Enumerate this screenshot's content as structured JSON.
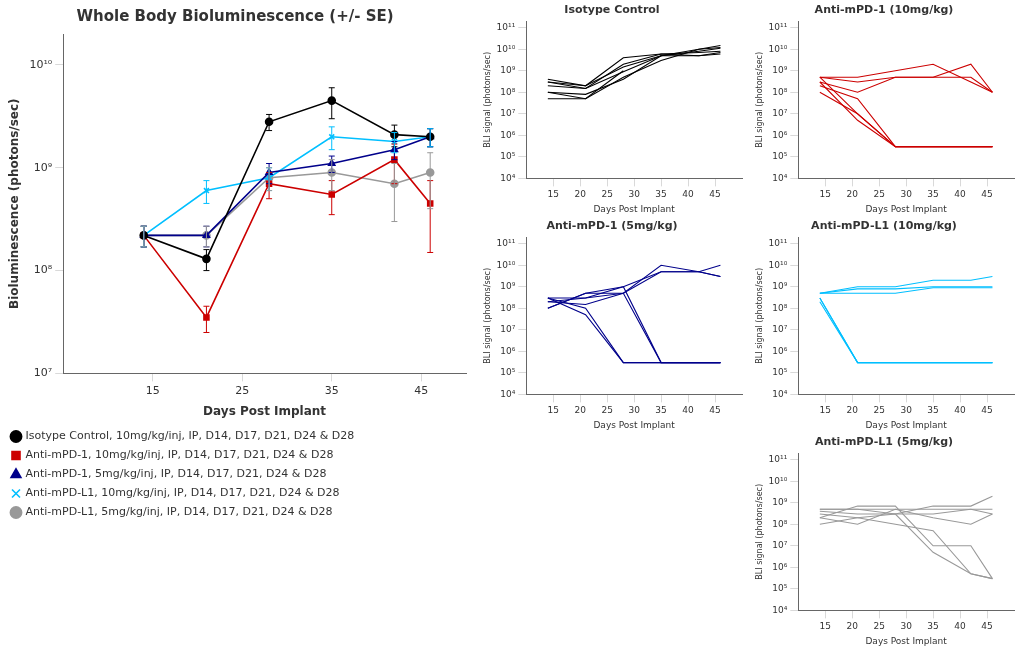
{
  "chart_data": [
    {
      "type": "line",
      "title": "Whole Body Bioluminescence (+/- SE)",
      "x_label": "Days Post Implant",
      "y_label": "Bioluminescence (photons/sec)",
      "x": [
        14,
        21,
        28,
        35,
        42,
        46
      ],
      "xlim": [
        5,
        50
      ],
      "xticks": [
        15,
        25,
        35,
        45
      ],
      "ylim": [
        10000000.0,
        20000000000.0
      ],
      "yticks": [
        {
          "value": 10000000.0,
          "label": "10⁷"
        },
        {
          "value": 100000000.0,
          "label": "10⁸"
        },
        {
          "value": 1000000000.0,
          "label": "10⁹"
        },
        {
          "value": 10000000000.0,
          "label": "10¹⁰"
        }
      ],
      "log": "y",
      "grid": false,
      "legend": "bottom",
      "series": [
        {
          "name": "Isotype Control, 10mg/kg/inj, IP, D14, D17, D21, D24 & D28",
          "color": "#000000",
          "marker": "circle",
          "values": [
            220000000.0,
            130000000.0,
            2800000000.0,
            4500000000.0,
            2100000000.0,
            2000000000.0
          ],
          "errors": [
            50000000.0,
            30000000.0,
            500000000.0,
            1500000000.0,
            500000000.0,
            400000000.0
          ]
        },
        {
          "name": "Anti-mPD-1, 10mg/kg/inj, IP, D14, D17, D21, D24 & D28",
          "color": "#cc0000",
          "marker": "square",
          "values": [
            220000000.0,
            35000000.0,
            700000000.0,
            550000000.0,
            1200000000.0,
            450000000.0
          ],
          "errors": [
            50000000.0,
            10000000.0,
            200000000.0,
            200000000.0,
            500000000.0,
            300000000.0
          ]
        },
        {
          "name": "Anti-mPD-1, 5mg/kg/inj, IP, D14, D17, D21, D24 & D28",
          "color": "#00008B",
          "marker": "triangle",
          "values": [
            220000000.0,
            220000000.0,
            900000000.0,
            1100000000.0,
            1500000000.0,
            2000000000.0
          ],
          "errors": [
            50000000.0,
            50000000.0,
            200000000.0,
            200000000.0,
            300000000.0,
            400000000.0
          ]
        },
        {
          "name": "Anti-mPD-L1, 10mg/kg/inj, IP, D14, D17, D21, D24 & D28",
          "color": "#00BFFF",
          "marker": "x",
          "values": [
            220000000.0,
            600000000.0,
            800000000.0,
            2000000000.0,
            1800000000.0,
            2000000000.0
          ],
          "errors": [
            50000000.0,
            150000000.0,
            200000000.0,
            500000000.0,
            400000000.0,
            400000000.0
          ]
        },
        {
          "name": "Anti-mPD-L1, 5mg/kg/inj, IP, D14, D17, D21, D24 & D28",
          "color": "#999999",
          "marker": "circle",
          "values": [
            220000000.0,
            220000000.0,
            800000000.0,
            900000000.0,
            700000000.0,
            900000000.0
          ],
          "errors": [
            50000000.0,
            50000000.0,
            200000000.0,
            300000000.0,
            400000000.0,
            500000000.0
          ]
        }
      ]
    },
    {
      "type": "line",
      "title": "Isotype Control",
      "x_label": "Days Post Implant",
      "y_label": "BLI signal (photons/sec)",
      "x": [
        14,
        21,
        28,
        35,
        42,
        46
      ],
      "xlim": [
        10,
        50
      ],
      "xticks": [
        15,
        20,
        25,
        30,
        35,
        40,
        45
      ],
      "ylim": [
        10000.0,
        200000000000.0
      ],
      "yticks": [
        {
          "value": 10000.0,
          "label": "10⁴"
        },
        {
          "value": 100000.0,
          "label": "10⁵"
        },
        {
          "value": 1000000.0,
          "label": "10⁶"
        },
        {
          "value": 10000000.0,
          "label": "10⁷"
        },
        {
          "value": 100000000.0,
          "label": "10⁸"
        },
        {
          "value": 1000000000.0,
          "label": "10⁹"
        },
        {
          "value": 10000000000.0,
          "label": "10¹⁰"
        },
        {
          "value": 100000000000.0,
          "label": "10¹¹"
        }
      ],
      "log": "y",
      "grid": false,
      "series": [
        {
          "color": "#000000",
          "values": [
            50000000.0,
            50000000.0,
            500000000.0,
            3000000000.0,
            10000000000.0,
            12000000000.0
          ]
        },
        {
          "color": "#000000",
          "values": [
            100000000.0,
            80000000.0,
            400000000.0,
            5000000000.0,
            5000000000.0,
            7000000000.0
          ]
        },
        {
          "color": "#000000",
          "values": [
            200000000.0,
            150000000.0,
            900000000.0,
            5000000000.0,
            8000000000.0,
            11000000000.0
          ]
        },
        {
          "color": "#000000",
          "values": [
            300000000.0,
            200000000.0,
            1500000000.0,
            5000000000.0,
            10000000000.0,
            15000000000.0
          ]
        },
        {
          "color": "#000000",
          "values": [
            300000000.0,
            150000000.0,
            2000000000.0,
            6000000000.0,
            7000000000.0,
            8000000000.0
          ]
        },
        {
          "color": "#000000",
          "values": [
            400000000.0,
            200000000.0,
            4000000000.0,
            6000000000.0,
            5000000000.0,
            6000000000.0
          ]
        },
        {
          "color": "#000000",
          "values": [
            100000000.0,
            50000000.0,
            1000000000.0,
            null,
            null,
            null
          ]
        }
      ]
    },
    {
      "type": "line",
      "title": "Anti-mPD-1 (10mg/kg)",
      "x_label": "Days Post Implant",
      "y_label": "BLI signal (photons/sec)",
      "x": [
        14,
        21,
        28,
        35,
        42,
        46
      ],
      "xlim": [
        10,
        50
      ],
      "xticks": [
        15,
        20,
        25,
        30,
        35,
        40,
        45
      ],
      "ylim": [
        10000.0,
        200000000000.0
      ],
      "yticks": [
        {
          "value": 10000.0,
          "label": "10⁴"
        },
        {
          "value": 100000.0,
          "label": "10⁵"
        },
        {
          "value": 1000000.0,
          "label": "10⁶"
        },
        {
          "value": 10000000.0,
          "label": "10⁷"
        },
        {
          "value": 100000000.0,
          "label": "10⁸"
        },
        {
          "value": 1000000000.0,
          "label": "10⁹"
        },
        {
          "value": 10000000000.0,
          "label": "10¹⁰"
        },
        {
          "value": 100000000000.0,
          "label": "10¹¹"
        }
      ],
      "log": "y",
      "grid": false,
      "series": [
        {
          "color": "#cc0000",
          "values": [
            100000000.0,
            10000000.0,
            300000.0,
            300000.0,
            300000.0,
            300000.0
          ]
        },
        {
          "color": "#cc0000",
          "values": [
            200000000.0,
            50000000.0,
            300000.0,
            300000.0,
            300000.0,
            300000.0
          ]
        },
        {
          "color": "#cc0000",
          "values": [
            300000000.0,
            5000000.0,
            300000.0,
            300000.0,
            300000.0,
            300000.0
          ]
        },
        {
          "color": "#cc0000",
          "values": [
            500000000.0,
            10000000.0,
            300000.0,
            300000.0,
            300000.0,
            300000.0
          ]
        },
        {
          "color": "#cc0000",
          "values": [
            500000000.0,
            500000000.0,
            1000000000.0,
            2000000000.0,
            300000000.0,
            100000000.0
          ]
        },
        {
          "color": "#cc0000",
          "values": [
            500000000.0,
            300000000.0,
            500000000.0,
            500000000.0,
            2000000000.0,
            100000000.0
          ]
        },
        {
          "color": "#cc0000",
          "values": [
            300000000.0,
            100000000.0,
            500000000.0,
            500000000.0,
            500000000.0,
            100000000.0
          ]
        }
      ]
    },
    {
      "type": "line",
      "title": "Anti-mPD-1 (5mg/kg)",
      "x_label": "Days Post Implant",
      "y_label": "BLI signal (photons/sec)",
      "x": [
        14,
        21,
        28,
        35,
        42,
        46
      ],
      "xlim": [
        10,
        50
      ],
      "xticks": [
        15,
        20,
        25,
        30,
        35,
        40,
        45
      ],
      "ylim": [
        10000.0,
        200000000000.0
      ],
      "yticks": [
        {
          "value": 10000.0,
          "label": "10⁴"
        },
        {
          "value": 100000.0,
          "label": "10⁵"
        },
        {
          "value": 1000000.0,
          "label": "10⁶"
        },
        {
          "value": 10000000.0,
          "label": "10⁷"
        },
        {
          "value": 100000000.0,
          "label": "10⁸"
        },
        {
          "value": 1000000000.0,
          "label": "10⁹"
        },
        {
          "value": 10000000000.0,
          "label": "10¹⁰"
        },
        {
          "value": 100000000000.0,
          "label": "10¹¹"
        }
      ],
      "log": "y",
      "grid": false,
      "series": [
        {
          "color": "#00008B",
          "values": [
            300000000.0,
            100000000.0,
            300000.0,
            300000.0,
            300000.0,
            300000.0
          ]
        },
        {
          "color": "#00008B",
          "values": [
            300000000.0,
            50000000.0,
            300000.0,
            300000.0,
            300000.0,
            300000.0
          ]
        },
        {
          "color": "#00008B",
          "values": [
            300000000.0,
            300000000.0,
            1000000000.0,
            300000.0,
            300000.0,
            300000.0
          ]
        },
        {
          "color": "#00008B",
          "values": [
            200000000.0,
            300000000.0,
            500000000.0,
            300000.0,
            300000.0,
            300000.0
          ]
        },
        {
          "color": "#00008B",
          "values": [
            200000000.0,
            150000000.0,
            500000000.0,
            5000000000.0,
            5000000000.0,
            3000000000.0
          ]
        },
        {
          "color": "#00008B",
          "values": [
            100000000.0,
            500000000.0,
            1000000000.0,
            5000000000.0,
            5000000000.0,
            10000000000.0
          ]
        },
        {
          "color": "#00008B",
          "values": [
            100000000.0,
            500000000.0,
            500000000.0,
            10000000000.0,
            5000000000.0,
            3000000000.0
          ]
        }
      ]
    },
    {
      "type": "line",
      "title": "Anti-mPD-L1 (10mg/kg)",
      "x_label": "Days Post Implant",
      "y_label": "BLI signal (photons/sec)",
      "x": [
        14,
        21,
        28,
        35,
        42,
        46
      ],
      "xlim": [
        10,
        50
      ],
      "xticks": [
        15,
        20,
        25,
        30,
        35,
        40,
        45
      ],
      "ylim": [
        10000.0,
        200000000000.0
      ],
      "yticks": [
        {
          "value": 10000.0,
          "label": "10⁴"
        },
        {
          "value": 100000.0,
          "label": "10⁵"
        },
        {
          "value": 1000000.0,
          "label": "10⁶"
        },
        {
          "value": 10000000.0,
          "label": "10⁷"
        },
        {
          "value": 100000000.0,
          "label": "10⁸"
        },
        {
          "value": 1000000000.0,
          "label": "10⁹"
        },
        {
          "value": 10000000000.0,
          "label": "10¹⁰"
        },
        {
          "value": 100000000000.0,
          "label": "10¹¹"
        }
      ],
      "log": "y",
      "grid": false,
      "series": [
        {
          "color": "#00BFFF",
          "values": [
            500000000.0,
            500000000.0,
            500000000.0,
            900000000.0,
            900000000.0,
            900000000.0
          ]
        },
        {
          "color": "#00BFFF",
          "values": [
            500000000.0,
            800000000.0,
            800000000.0,
            1000000000.0,
            1000000000.0,
            1000000000.0
          ]
        },
        {
          "color": "#00BFFF",
          "values": [
            500000000.0,
            1000000000.0,
            1000000000.0,
            2000000000.0,
            2000000000.0,
            3000000000.0
          ]
        },
        {
          "color": "#00BFFF",
          "values": [
            300000000.0,
            300000.0,
            300000.0,
            300000.0,
            300000.0,
            300000.0
          ]
        },
        {
          "color": "#00BFFF",
          "values": [
            300000000.0,
            300000.0,
            300000.0,
            300000.0,
            300000.0,
            300000.0
          ]
        },
        {
          "color": "#00BFFF",
          "values": [
            200000000.0,
            300000.0,
            300000.0,
            300000.0,
            300000.0,
            300000.0
          ]
        }
      ]
    },
    {
      "type": "line",
      "title": "Anti-mPD-L1 (5mg/kg)",
      "x_label": "Days Post Implant",
      "y_label": "BLI signal (photons/sec)",
      "x": [
        14,
        21,
        28,
        35,
        42,
        46
      ],
      "xlim": [
        10,
        50
      ],
      "xticks": [
        15,
        20,
        25,
        30,
        35,
        40,
        45
      ],
      "ylim": [
        10000.0,
        200000000000.0
      ],
      "yticks": [
        {
          "value": 10000.0,
          "label": "10⁴"
        },
        {
          "value": 100000.0,
          "label": "10⁵"
        },
        {
          "value": 1000000.0,
          "label": "10⁶"
        },
        {
          "value": 10000000.0,
          "label": "10⁷"
        },
        {
          "value": 100000000.0,
          "label": "10⁸"
        },
        {
          "value": 1000000000.0,
          "label": "10⁹"
        },
        {
          "value": 10000000000.0,
          "label": "10¹⁰"
        },
        {
          "value": 100000000000.0,
          "label": "10¹¹"
        }
      ],
      "log": "y",
      "grid": false,
      "series": [
        {
          "color": "#999999",
          "values": [
            500000000.0,
            500000000.0,
            300000000.0,
            700000000.0,
            700000000.0,
            2000000000.0
          ]
        },
        {
          "color": "#999999",
          "values": [
            500000000.0,
            500000000.0,
            500000000.0,
            500000000.0,
            500000000.0,
            300000000.0
          ]
        },
        {
          "color": "#999999",
          "values": [
            400000000.0,
            300000000.0,
            300000000.0,
            5000000.0,
            500000.0,
            300000.0
          ]
        },
        {
          "color": "#999999",
          "values": [
            300000000.0,
            200000000.0,
            100000000.0,
            50000000.0,
            500000.0,
            300000.0
          ]
        },
        {
          "color": "#999999",
          "values": [
            200000000.0,
            100000000.0,
            500000000.0,
            200000000.0,
            100000000.0,
            300000000.0
          ]
        },
        {
          "color": "#999999",
          "values": [
            200000000.0,
            700000000.0,
            700000000.0,
            10000000.0,
            10000000.0,
            300000.0
          ]
        },
        {
          "color": "#999999",
          "values": [
            100000000.0,
            200000000.0,
            300000000.0,
            300000000.0,
            500000000.0,
            500000000.0
          ]
        }
      ]
    }
  ]
}
